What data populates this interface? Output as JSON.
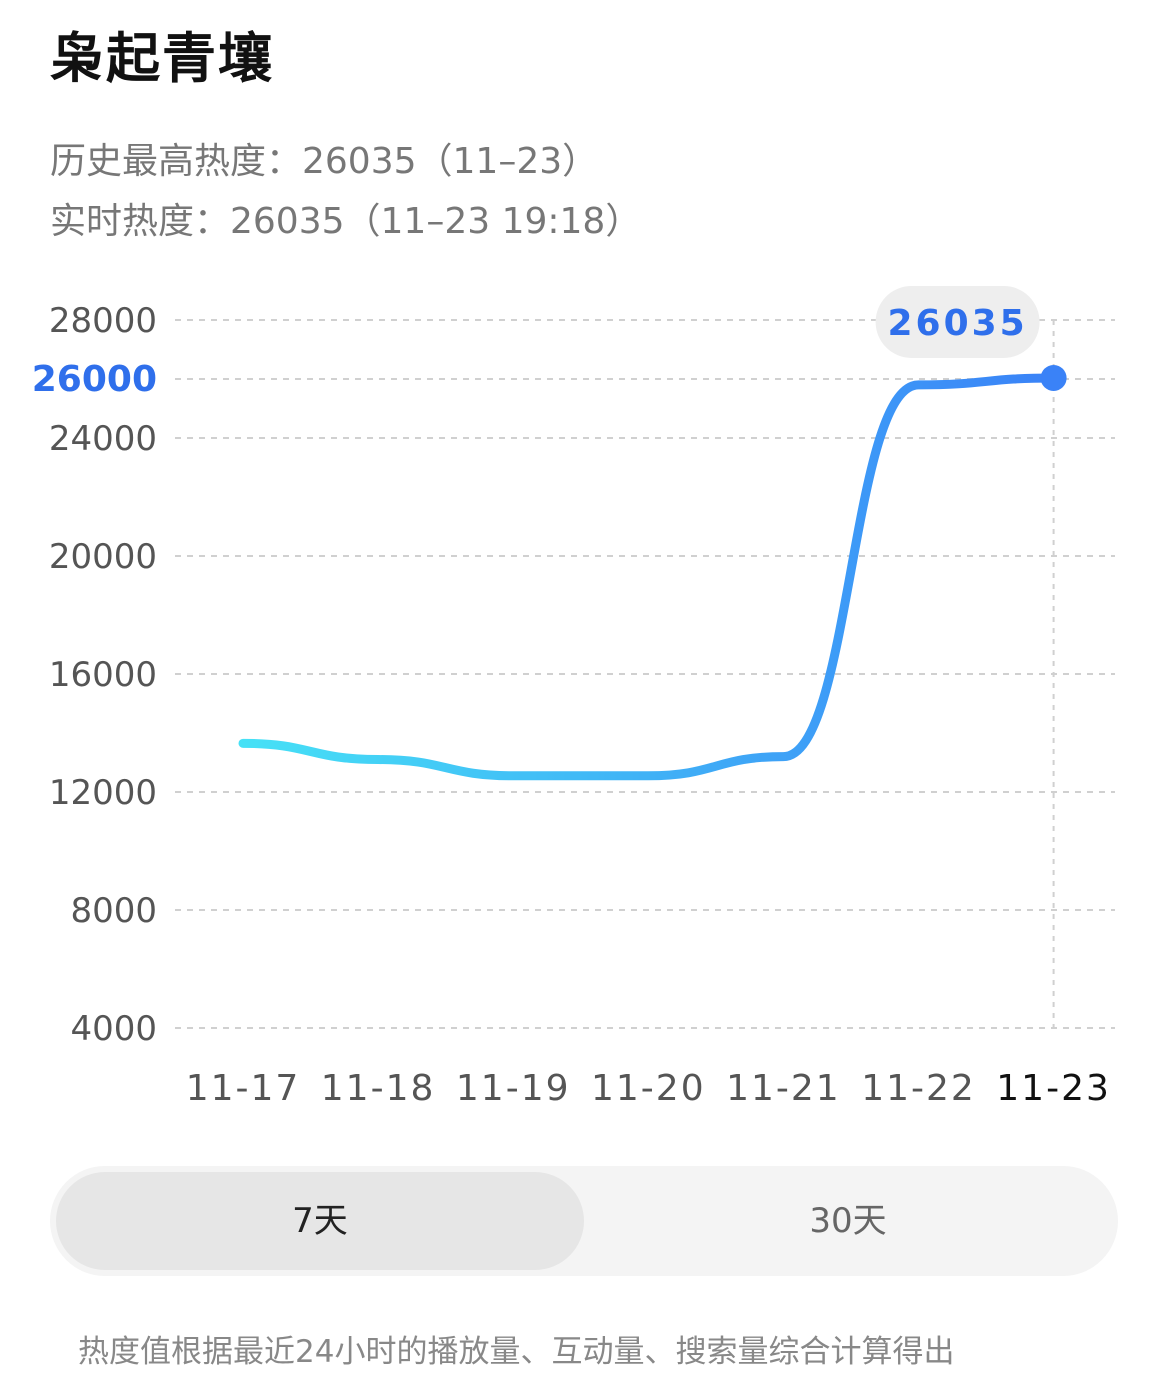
{
  "header": {
    "title": "枭起青壤",
    "peak_label": "历史最高热度：26035（11–23）",
    "live_label": "实时热度：26035（11–23 19:18）"
  },
  "tabs": [
    {
      "label": "7天",
      "active": true
    },
    {
      "label": "30天",
      "active": false
    }
  ],
  "footnote": "热度值根据最近24小时的播放量、互动量、搜索量综合计算得出",
  "colors": {
    "line_start": "#46E1F6",
    "line_end": "#3A82F7",
    "highlight": "#2F6FEB",
    "grid": "#d0d0d0",
    "tick": "#555555"
  },
  "chart_data": {
    "type": "line",
    "x": [
      "11-17",
      "11-18",
      "11-19",
      "11-20",
      "11-21",
      "11-22",
      "11-23"
    ],
    "series": [
      {
        "values": [
          13650,
          13100,
          12550,
          12550,
          13200,
          25800,
          26035
        ]
      }
    ],
    "yticks": [
      4000,
      8000,
      12000,
      16000,
      20000,
      24000,
      26000,
      28000
    ],
    "highlight_tick": 26000,
    "ylim": [
      4000,
      28000
    ],
    "highlight_point": {
      "x": "11-23",
      "y": 26035,
      "label": "26035"
    },
    "grid": true
  }
}
